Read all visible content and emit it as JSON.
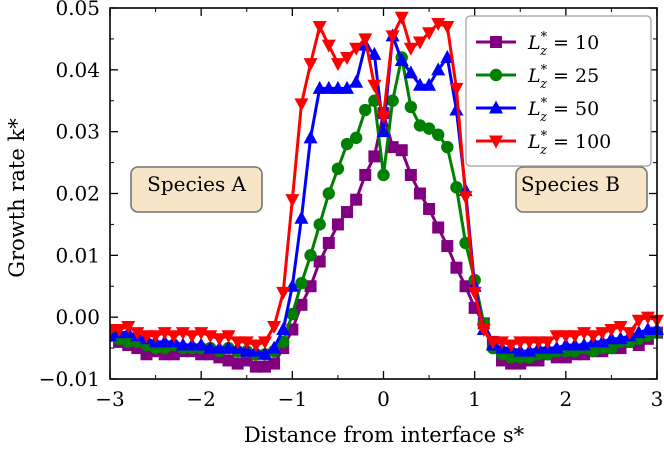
{
  "chart_data": {
    "type": "line",
    "xlabel": "Distance from interface s*",
    "ylabel": "Growth rate k*",
    "xlim": [
      -3,
      3
    ],
    "ylim": [
      -0.01,
      0.05
    ],
    "xticks": [
      -3,
      -2,
      -1,
      0,
      1,
      2,
      3
    ],
    "xtick_labels": [
      "−3",
      "−2",
      "−1",
      "0",
      "1",
      "2",
      "3"
    ],
    "yticks": [
      -0.01,
      0.0,
      0.01,
      0.02,
      0.03,
      0.04,
      0.05
    ],
    "ytick_labels": [
      "−0.01",
      "0.00",
      "0.01",
      "0.02",
      "0.03",
      "0.04",
      "0.05"
    ],
    "legend_position": "top-right",
    "annotations": [
      {
        "text": "Species A",
        "x": -2.05,
        "y": 0.0215
      },
      {
        "text": "Species B",
        "x": 2.05,
        "y": 0.0215
      }
    ],
    "x": [
      -3.0,
      -2.9,
      -2.8,
      -2.7,
      -2.6,
      -2.5,
      -2.4,
      -2.3,
      -2.2,
      -2.1,
      -2.0,
      -1.9,
      -1.8,
      -1.7,
      -1.6,
      -1.5,
      -1.4,
      -1.3,
      -1.2,
      -1.1,
      -1.0,
      -0.9,
      -0.8,
      -0.7,
      -0.6,
      -0.5,
      -0.4,
      -0.3,
      -0.2,
      -0.1,
      0.0,
      0.1,
      0.2,
      0.3,
      0.4,
      0.5,
      0.6,
      0.7,
      0.8,
      0.9,
      1.0,
      1.1,
      1.2,
      1.3,
      1.4,
      1.5,
      1.6,
      1.7,
      1.8,
      1.9,
      2.0,
      2.1,
      2.2,
      2.3,
      2.4,
      2.5,
      2.6,
      2.7,
      2.8,
      2.9,
      3.0
    ],
    "series": [
      {
        "name": "L*z = 10",
        "label_main": "L",
        "label_sup": "*",
        "label_sub": "z",
        "label_value": " = 10",
        "color": "#800080",
        "marker": "square",
        "values": [
          -0.003,
          -0.004,
          -0.0045,
          -0.005,
          -0.006,
          -0.0055,
          -0.006,
          -0.006,
          -0.0055,
          -0.0055,
          -0.006,
          -0.006,
          -0.0065,
          -0.007,
          -0.0075,
          -0.007,
          -0.008,
          -0.008,
          -0.0075,
          -0.005,
          -0.002,
          0.002,
          0.005,
          0.009,
          0.012,
          0.015,
          0.017,
          0.019,
          0.023,
          0.026,
          0.033,
          0.0275,
          0.027,
          0.023,
          0.02,
          0.0175,
          0.0145,
          0.0115,
          0.008,
          0.005,
          0.0015,
          -0.001,
          -0.004,
          -0.007,
          -0.0075,
          -0.0075,
          -0.007,
          -0.007,
          -0.006,
          -0.0065,
          -0.0065,
          -0.006,
          -0.006,
          -0.0055,
          -0.0055,
          -0.005,
          -0.005,
          -0.004,
          -0.0045,
          -0.0035,
          -0.0025
        ]
      },
      {
        "name": "L*z = 25",
        "label_main": "L",
        "label_sup": "*",
        "label_sub": "z",
        "label_value": " = 25",
        "color": "#008000",
        "marker": "circle",
        "values": [
          -0.003,
          -0.0035,
          -0.004,
          -0.004,
          -0.0045,
          -0.005,
          -0.005,
          -0.0045,
          -0.005,
          -0.005,
          -0.005,
          -0.005,
          -0.0055,
          -0.005,
          -0.0055,
          -0.0055,
          -0.006,
          -0.006,
          -0.0055,
          -0.004,
          0.0005,
          0.0055,
          0.01,
          0.015,
          0.02,
          0.024,
          0.028,
          0.029,
          0.0335,
          0.035,
          0.023,
          0.035,
          0.042,
          0.034,
          0.031,
          0.0305,
          0.0295,
          0.0275,
          0.021,
          0.012,
          0.006,
          -0.001,
          -0.005,
          -0.006,
          -0.0065,
          -0.0065,
          -0.0065,
          -0.006,
          -0.006,
          -0.0055,
          -0.0055,
          -0.0055,
          -0.005,
          -0.0055,
          -0.005,
          -0.005,
          -0.004,
          -0.004,
          -0.0035,
          -0.003,
          -0.0025
        ]
      },
      {
        "name": "L*z = 50",
        "label_main": "L",
        "label_sup": "*",
        "label_sub": "z",
        "label_value": " = 50",
        "color": "#0000ff",
        "marker": "triangle-up",
        "values": [
          -0.003,
          -0.0025,
          -0.0025,
          -0.003,
          -0.0035,
          -0.004,
          -0.004,
          -0.004,
          -0.0045,
          -0.0045,
          -0.0045,
          -0.005,
          -0.005,
          -0.005,
          -0.005,
          -0.0055,
          -0.0055,
          -0.006,
          -0.005,
          -0.002,
          0.005,
          0.016,
          0.029,
          0.037,
          0.037,
          0.037,
          0.037,
          0.038,
          0.044,
          0.0425,
          0.03,
          0.0455,
          0.0415,
          0.0395,
          0.0375,
          0.0375,
          0.04,
          0.042,
          0.0335,
          0.0205,
          0.005,
          -0.002,
          -0.0045,
          -0.005,
          -0.005,
          -0.0055,
          -0.0055,
          -0.005,
          -0.005,
          -0.005,
          -0.0045,
          -0.0045,
          -0.0045,
          -0.004,
          -0.004,
          -0.0035,
          -0.0035,
          -0.003,
          -0.0025,
          -0.002,
          -0.002
        ]
      },
      {
        "name": "L*z = 100",
        "label_main": "L",
        "label_sup": "*",
        "label_sub": "z",
        "label_value": " = 100",
        "color": "#ff0000",
        "marker": "triangle-down",
        "values": [
          -0.002,
          -0.002,
          -0.0015,
          -0.0025,
          -0.003,
          -0.003,
          -0.0025,
          -0.003,
          -0.0025,
          -0.003,
          -0.0025,
          -0.003,
          -0.0035,
          -0.003,
          -0.004,
          -0.004,
          -0.0045,
          -0.004,
          -0.0015,
          0.004,
          0.019,
          0.0345,
          0.041,
          0.047,
          0.044,
          0.041,
          0.042,
          0.0435,
          0.045,
          0.0375,
          0.0325,
          0.0455,
          0.0485,
          0.0435,
          0.0445,
          0.046,
          0.0475,
          0.047,
          0.037,
          0.0195,
          0.004,
          -0.002,
          -0.004,
          -0.004,
          -0.0045,
          -0.004,
          -0.004,
          -0.004,
          -0.004,
          -0.003,
          -0.003,
          -0.003,
          -0.0025,
          -0.003,
          -0.0025,
          -0.002,
          -0.0015,
          -0.0025,
          -0.0005,
          0.0,
          -0.0005
        ]
      }
    ]
  }
}
